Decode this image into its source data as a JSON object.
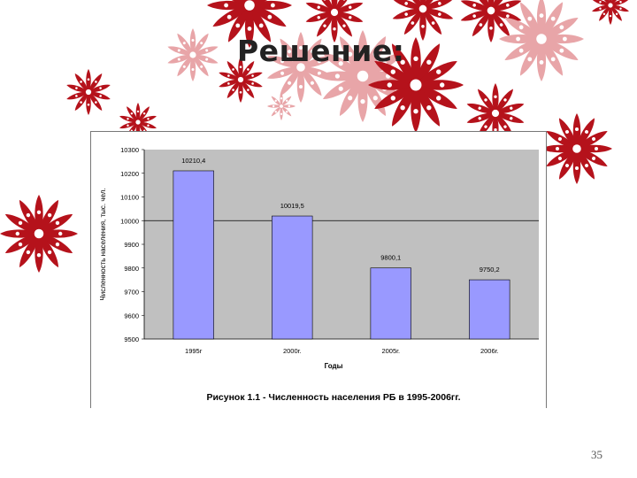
{
  "slide": {
    "title": "Решение:",
    "page_number": "35"
  },
  "colors": {
    "plot_background": "#c0c0c0",
    "bar_fill": "#9999ff",
    "flower_dark": "#b5121b",
    "flower_light": "#e8a5a8"
  },
  "chart_data": {
    "type": "bar",
    "title": "Рисунок 1.1 - Численность населения РБ в 1995-2006гг.",
    "xlabel": "Годы",
    "ylabel": "Численность населения, тыс. чел.",
    "categories": [
      "1995г",
      "2000г.",
      "2005г.",
      "2006г."
    ],
    "values": [
      10210.4,
      10019.5,
      9800.1,
      9750.2
    ],
    "data_labels": [
      "10210,4",
      "10019,5",
      "9800,1",
      "9750,2"
    ],
    "ylim": [
      9500,
      10300
    ],
    "yticks": [
      "10300",
      "10200",
      "10100",
      "10000",
      "9900",
      "9800",
      "9700",
      "9600",
      "9500"
    ],
    "grid": "horizontal major at 10000",
    "legend": "none"
  }
}
